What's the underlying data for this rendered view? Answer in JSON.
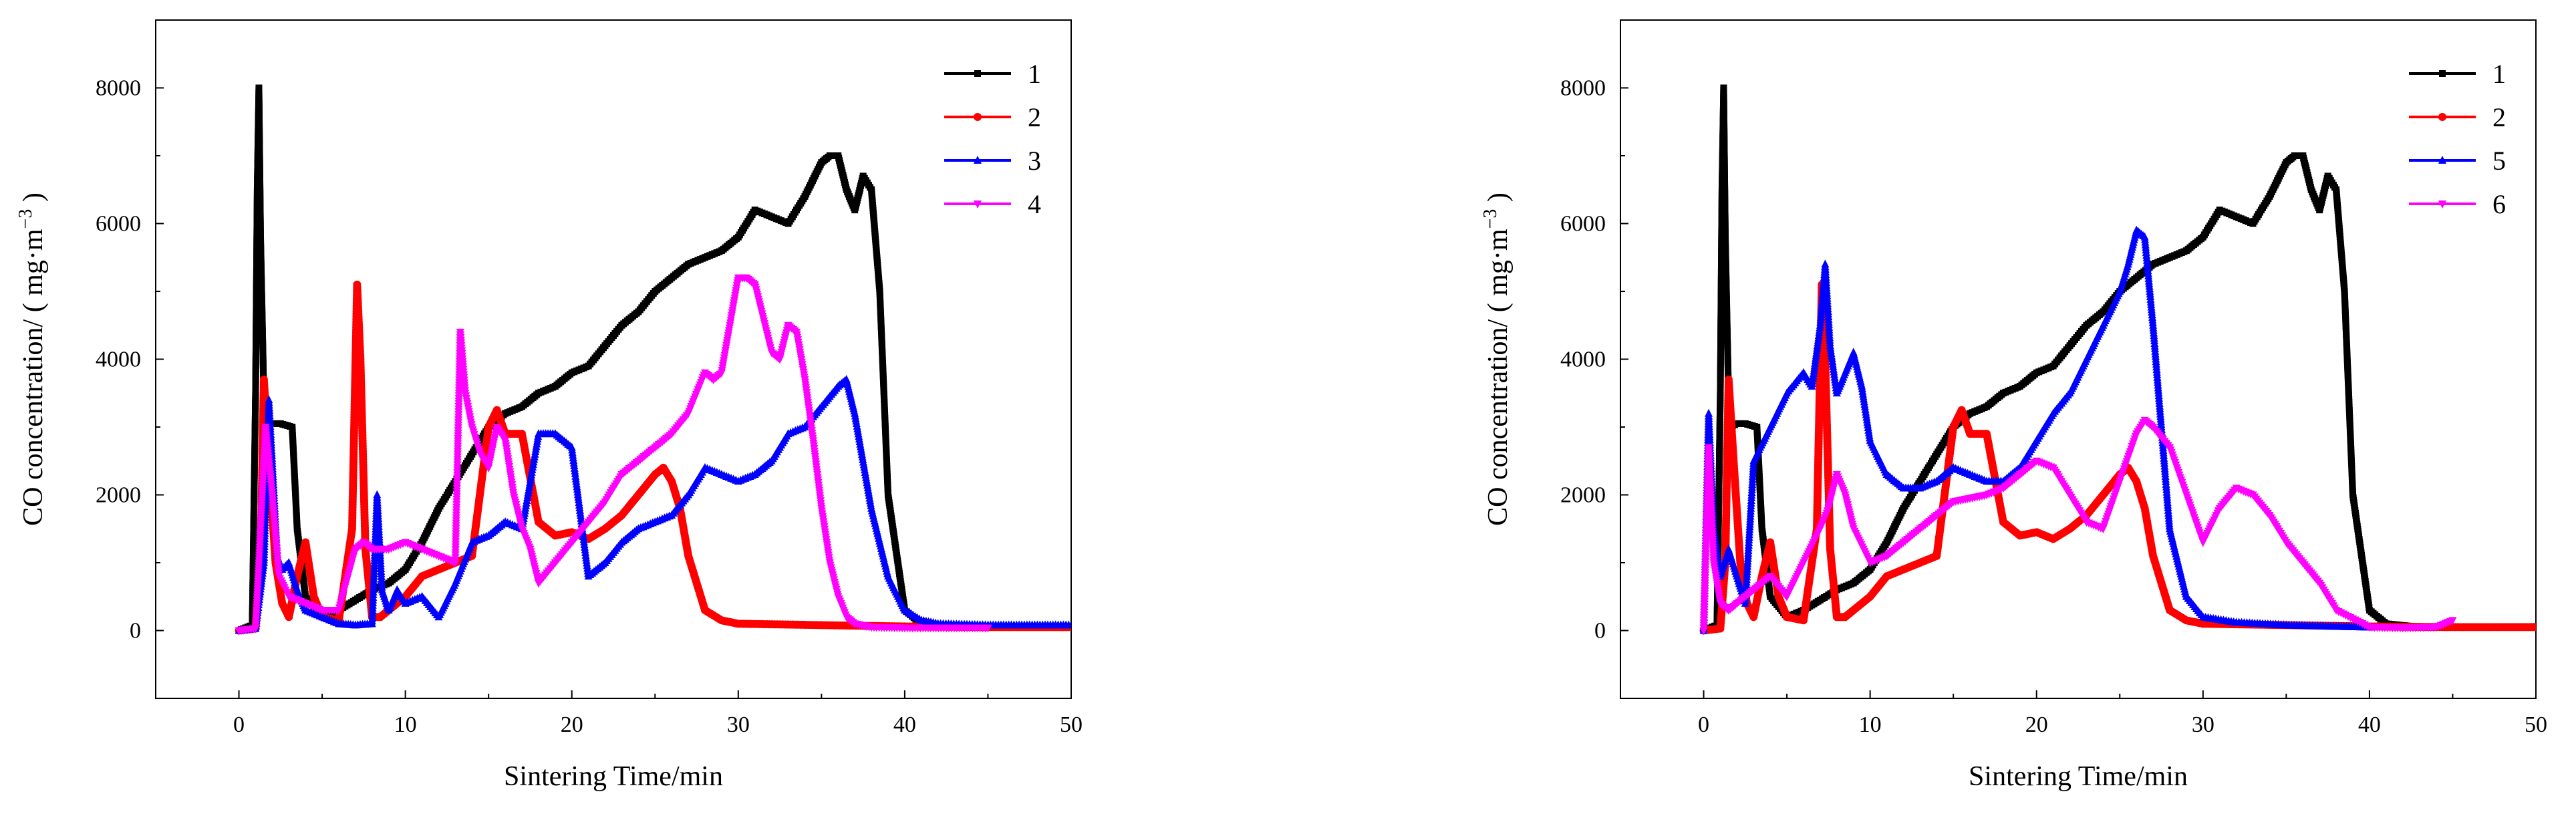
{
  "chart_data": [
    {
      "type": "line",
      "xlabel": "Sintering Time/min",
      "ylabel": "CO concentration/ ( mg·m",
      "ylabel_sup": "−3",
      "ylabel_close": " )",
      "xlim": [
        -5,
        50
      ],
      "ylim": [
        -1000,
        9000
      ],
      "xticks": [
        0,
        10,
        20,
        30,
        40,
        50
      ],
      "yticks": [
        0,
        2000,
        4000,
        6000,
        8000
      ],
      "legend_position": "top-right",
      "series": [
        {
          "name": "1",
          "color": "#000000",
          "marker": "square",
          "x": [
            0,
            0.8,
            1,
            1.1,
            1.2,
            1.3,
            1.5,
            1.6,
            2,
            2.5,
            3.2,
            3.5,
            4,
            5,
            6,
            7,
            8,
            9,
            10,
            11,
            12,
            13,
            14,
            15,
            16,
            17,
            18,
            19,
            20,
            21,
            22,
            23,
            24,
            25,
            26,
            27,
            28,
            29,
            30,
            31,
            32,
            33,
            34,
            35,
            35.5,
            36,
            36.5,
            37,
            37.5,
            38,
            38.5,
            39,
            40,
            41,
            43,
            46,
            50
          ],
          "y": [
            0,
            80,
            3500,
            6500,
            8000,
            5800,
            3400,
            3000,
            3050,
            3050,
            3000,
            1500,
            500,
            200,
            300,
            450,
            600,
            700,
            900,
            1300,
            1800,
            2200,
            2600,
            3000,
            3200,
            3300,
            3500,
            3600,
            3800,
            3900,
            4200,
            4500,
            4700,
            5000,
            5200,
            5400,
            5500,
            5600,
            5800,
            6200,
            6100,
            6000,
            6400,
            6900,
            7000,
            7000,
            6500,
            6200,
            6700,
            6500,
            5000,
            2000,
            300,
            100,
            50,
            50,
            60
          ]
        },
        {
          "name": "2",
          "color": "#ff0000",
          "marker": "circle",
          "x": [
            0,
            1,
            1.3,
            1.5,
            1.8,
            2.2,
            2.6,
            3,
            3.5,
            4,
            4.5,
            5,
            6,
            6.8,
            7.1,
            7.3,
            7.6,
            8,
            8.5,
            9,
            10,
            11,
            12,
            13,
            14,
            15,
            15.5,
            16,
            17,
            18,
            19,
            20,
            21,
            22,
            23,
            24,
            25,
            25.5,
            26,
            26.5,
            27,
            27.5,
            28,
            29,
            30,
            35,
            40,
            45,
            50
          ],
          "y": [
            0,
            30,
            1000,
            3700,
            2500,
            1000,
            400,
            200,
            800,
            1300,
            500,
            200,
            150,
            1500,
            5100,
            4000,
            1200,
            200,
            200,
            300,
            500,
            800,
            900,
            1000,
            1100,
            3000,
            3250,
            2900,
            2900,
            1600,
            1400,
            1450,
            1350,
            1500,
            1700,
            2000,
            2300,
            2400,
            2200,
            1800,
            1100,
            700,
            300,
            150,
            100,
            80,
            60,
            50,
            50
          ]
        },
        {
          "name": "3",
          "color": "#0000ff",
          "marker": "triangle",
          "x": [
            0,
            1,
            1.5,
            1.8,
            2,
            2.3,
            2.6,
            3,
            3.5,
            4,
            5,
            6,
            7,
            8,
            8.3,
            8.6,
            9,
            9.5,
            10,
            11,
            12,
            13,
            14,
            15,
            16,
            17,
            18,
            19,
            20,
            21,
            22,
            23,
            24,
            25,
            26,
            27,
            28,
            29,
            30,
            31,
            32,
            33,
            34,
            35,
            36,
            36.5,
            37,
            38,
            39,
            40,
            41,
            42,
            45,
            50
          ],
          "y": [
            0,
            30,
            1000,
            3400,
            2500,
            1100,
            900,
            1000,
            600,
            300,
            200,
            100,
            80,
            100,
            2000,
            600,
            300,
            600,
            400,
            500,
            200,
            700,
            1300,
            1400,
            1600,
            1500,
            2900,
            2900,
            2700,
            800,
            1000,
            1300,
            1500,
            1600,
            1700,
            2000,
            2400,
            2300,
            2200,
            2300,
            2500,
            2900,
            3000,
            3300,
            3600,
            3700,
            3200,
            1800,
            800,
            300,
            150,
            100,
            80,
            80
          ]
        },
        {
          "name": "4",
          "color": "#ff00ff",
          "marker": "triangle-down",
          "x": [
            0,
            1,
            1.3,
            1.6,
            2,
            2.4,
            3,
            4,
            5,
            6,
            7,
            7.5,
            8,
            9,
            10,
            11,
            12,
            13,
            13.3,
            13.6,
            14,
            14.5,
            15,
            15.5,
            16,
            16.5,
            17,
            17.5,
            18,
            19,
            20,
            21,
            22,
            23,
            24,
            25,
            26,
            27,
            28,
            28.5,
            29,
            29.5,
            30,
            30.5,
            31,
            31.5,
            32,
            32.5,
            33,
            33.5,
            34,
            34.5,
            35,
            35.5,
            36,
            36.5,
            37,
            38,
            40,
            45
          ],
          "y": [
            0,
            30,
            1500,
            3000,
            2000,
            800,
            500,
            400,
            300,
            300,
            1200,
            1300,
            1200,
            1200,
            1300,
            1200,
            1100,
            1000,
            4400,
            3500,
            3000,
            2600,
            2400,
            3000,
            2800,
            2000,
            1500,
            1200,
            700,
            1000,
            1300,
            1600,
            1900,
            2300,
            2500,
            2700,
            2900,
            3200,
            3800,
            3700,
            3800,
            4500,
            5200,
            5200,
            5100,
            4600,
            4100,
            4000,
            4500,
            4400,
            3700,
            2800,
            1800,
            1000,
            500,
            200,
            100,
            50,
            40,
            40
          ]
        }
      ]
    },
    {
      "type": "line",
      "xlabel": "Sintering Time/min",
      "ylabel": "CO concentration/ ( mg·m",
      "ylabel_sup": "−3",
      "ylabel_close": " )",
      "xlim": [
        -5,
        50
      ],
      "ylim": [
        -1000,
        9000
      ],
      "xticks": [
        0,
        10,
        20,
        30,
        40,
        50
      ],
      "yticks": [
        0,
        2000,
        4000,
        6000,
        8000
      ],
      "legend_position": "top-right",
      "series": [
        {
          "name": "1",
          "color": "#000000",
          "marker": "square",
          "x": [
            0,
            0.8,
            1,
            1.1,
            1.2,
            1.3,
            1.5,
            1.6,
            2,
            2.5,
            3.2,
            3.5,
            4,
            5,
            6,
            7,
            8,
            9,
            10,
            11,
            12,
            13,
            14,
            15,
            16,
            17,
            18,
            19,
            20,
            21,
            22,
            23,
            24,
            25,
            26,
            27,
            28,
            29,
            30,
            31,
            32,
            33,
            34,
            35,
            35.5,
            36,
            36.5,
            37,
            37.5,
            38,
            38.5,
            39,
            40,
            41,
            43,
            46,
            50
          ],
          "y": [
            0,
            80,
            3500,
            6500,
            8000,
            5800,
            3400,
            3000,
            3050,
            3050,
            3000,
            1500,
            500,
            200,
            300,
            450,
            600,
            700,
            900,
            1300,
            1800,
            2200,
            2600,
            3000,
            3200,
            3300,
            3500,
            3600,
            3800,
            3900,
            4200,
            4500,
            4700,
            5000,
            5200,
            5400,
            5500,
            5600,
            5800,
            6200,
            6100,
            6000,
            6400,
            6900,
            7000,
            7000,
            6500,
            6200,
            6700,
            6500,
            5000,
            2000,
            300,
            100,
            50,
            50,
            60
          ]
        },
        {
          "name": "2",
          "color": "#ff0000",
          "marker": "circle",
          "x": [
            0,
            1,
            1.3,
            1.5,
            1.8,
            2.2,
            2.6,
            3,
            3.5,
            4,
            4.5,
            5,
            6,
            6.8,
            7.1,
            7.3,
            7.6,
            8,
            8.5,
            9,
            10,
            11,
            12,
            13,
            14,
            15,
            15.5,
            16,
            17,
            18,
            19,
            20,
            21,
            22,
            23,
            24,
            25,
            25.5,
            26,
            26.5,
            27,
            27.5,
            28,
            29,
            30,
            35,
            40,
            45,
            50
          ],
          "y": [
            0,
            30,
            1000,
            3700,
            2500,
            1000,
            400,
            200,
            800,
            1300,
            500,
            200,
            150,
            1500,
            5100,
            4000,
            1200,
            200,
            200,
            300,
            500,
            800,
            900,
            1000,
            1100,
            3000,
            3250,
            2900,
            2900,
            1600,
            1400,
            1450,
            1350,
            1500,
            1700,
            2000,
            2300,
            2400,
            2200,
            1800,
            1100,
            700,
            300,
            150,
            100,
            80,
            60,
            50,
            50
          ]
        },
        {
          "name": "5",
          "color": "#0000ff",
          "marker": "triangle",
          "x": [
            0,
            0.3,
            0.6,
            1,
            1.5,
            2,
            2.5,
            3,
            4,
            5,
            6,
            6.5,
            7,
            7.3,
            7.6,
            8,
            8.5,
            9,
            9.5,
            10,
            11,
            12,
            13,
            14,
            15,
            16,
            17,
            18,
            19,
            20,
            21,
            22,
            23,
            24,
            25,
            25.5,
            26,
            26.5,
            27,
            27.5,
            28,
            29,
            30,
            32,
            35,
            38,
            40
          ],
          "y": [
            0,
            3200,
            1500,
            800,
            1200,
            800,
            400,
            2500,
            3000,
            3500,
            3800,
            3600,
            4500,
            5400,
            4200,
            3500,
            3800,
            4100,
            3600,
            2800,
            2300,
            2100,
            2100,
            2200,
            2400,
            2300,
            2200,
            2200,
            2400,
            2800,
            3200,
            3500,
            4000,
            4500,
            5000,
            5400,
            5900,
            5800,
            4500,
            3000,
            1500,
            500,
            200,
            120,
            80,
            60,
            50
          ]
        },
        {
          "name": "6",
          "color": "#ff00ff",
          "marker": "triangle-down",
          "x": [
            0,
            0.3,
            0.6,
            1,
            1.5,
            2,
            3,
            4,
            5,
            6,
            7,
            7.5,
            8,
            8.5,
            9,
            10,
            11,
            12,
            13,
            14,
            15,
            16,
            17,
            18,
            19,
            20,
            21,
            22,
            23,
            24,
            25,
            26,
            26.5,
            27,
            28,
            29,
            30,
            31,
            32,
            33,
            34,
            35,
            36,
            37,
            38,
            40,
            42,
            44,
            45
          ],
          "y": [
            0,
            2700,
            1000,
            400,
            300,
            400,
            600,
            800,
            500,
            1000,
            1500,
            1800,
            2300,
            2000,
            1500,
            1000,
            1100,
            1300,
            1500,
            1700,
            1900,
            1950,
            2000,
            2100,
            2300,
            2500,
            2400,
            2000,
            1600,
            1500,
            2200,
            2900,
            3100,
            3000,
            2700,
            2000,
            1300,
            1800,
            2100,
            2000,
            1700,
            1300,
            1000,
            700,
            300,
            50,
            40,
            50,
            150
          ]
        }
      ]
    }
  ]
}
